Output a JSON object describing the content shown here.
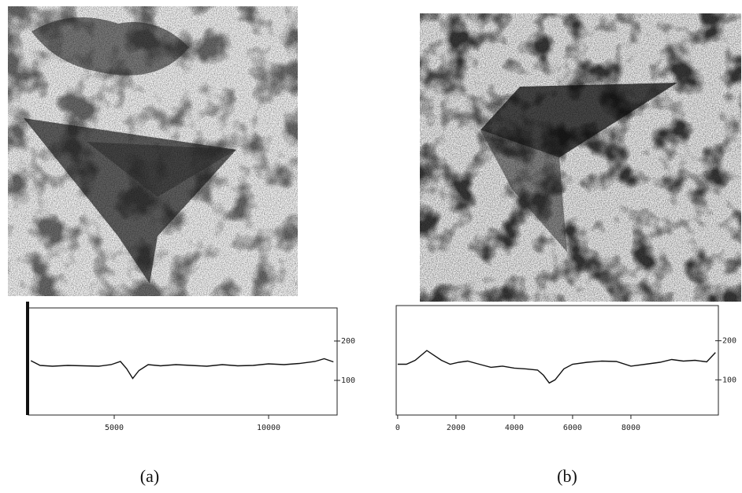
{
  "chart_data": [
    {
      "type": "line",
      "color": "#111111",
      "x": [
        2300,
        2600,
        3000,
        3500,
        4000,
        4500,
        4900,
        5200,
        5400,
        5600,
        5800,
        6100,
        6500,
        7000,
        7500,
        8000,
        8500,
        9000,
        9500,
        10000,
        10500,
        11000,
        11500,
        11800,
        12100
      ],
      "values": [
        150,
        138,
        136,
        138,
        137,
        136,
        140,
        148,
        130,
        105,
        125,
        140,
        137,
        140,
        138,
        136,
        140,
        137,
        138,
        142,
        140,
        143,
        148,
        155,
        147
      ],
      "xlim": [
        2219,
        12219
      ],
      "xticks": [
        5000,
        10000
      ],
      "ylim": [
        12,
        284
      ],
      "yticks": [
        100,
        200
      ]
    },
    {
      "type": "line",
      "color": "#111111",
      "x": [
        0,
        300,
        600,
        1000,
        1200,
        1500,
        1800,
        2100,
        2400,
        2800,
        3200,
        3600,
        4000,
        4400,
        4800,
        5000,
        5200,
        5400,
        5700,
        6000,
        6500,
        7000,
        7500,
        8000,
        8500,
        9000,
        9400,
        9800,
        10200,
        10600,
        10900
      ],
      "values": [
        140,
        140,
        150,
        175,
        165,
        150,
        140,
        145,
        148,
        140,
        132,
        135,
        130,
        128,
        125,
        112,
        92,
        100,
        128,
        140,
        145,
        148,
        147,
        135,
        140,
        145,
        152,
        148,
        150,
        146,
        170
      ],
      "xlim": [
        -50,
        11000
      ],
      "xticks": [
        0,
        2000,
        4000,
        6000,
        8000
      ],
      "ylim": [
        10,
        290
      ],
      "yticks": [
        100,
        200
      ]
    }
  ],
  "captions": [
    "(a)",
    "(b)"
  ]
}
